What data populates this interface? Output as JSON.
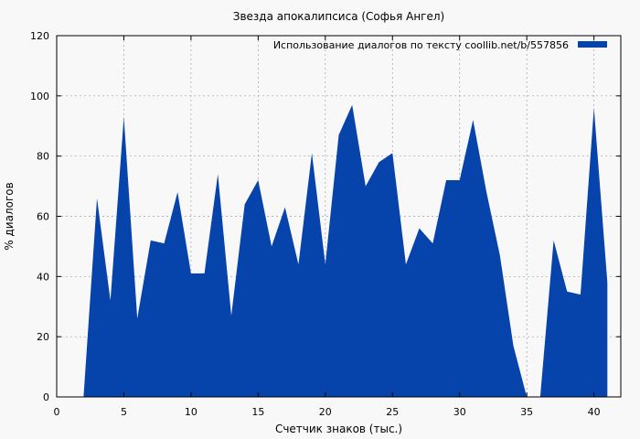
{
  "chart_data": {
    "type": "area",
    "title": "Звезда апокалипсиса (Софья Ангел)",
    "xlabel": "Счетчик знаков (тыс.)",
    "ylabel": "% диалогов",
    "xlim": [
      0,
      42
    ],
    "ylim": [
      0,
      120
    ],
    "x_ticks": [
      0,
      5,
      10,
      15,
      20,
      25,
      30,
      35,
      40
    ],
    "y_ticks": [
      0,
      20,
      40,
      60,
      80,
      100,
      120
    ],
    "grid": true,
    "legend_position": "top-right",
    "series": [
      {
        "name": "Использование диалогов по тексту  coollib.net/b/557856",
        "color": "#0643ab",
        "x": [
          0,
          1,
          2,
          3,
          4,
          5,
          6,
          7,
          8,
          9,
          10,
          11,
          12,
          13,
          14,
          15,
          16,
          17,
          18,
          19,
          20,
          21,
          22,
          23,
          24,
          25,
          26,
          27,
          28,
          29,
          30,
          31,
          32,
          33,
          34,
          35,
          36,
          37,
          38,
          39,
          40,
          41
        ],
        "values": [
          0,
          0,
          0,
          66,
          32,
          93,
          26,
          52,
          51,
          68,
          41,
          41,
          74,
          27,
          64,
          72,
          50,
          63,
          44,
          81,
          44,
          87,
          97,
          70,
          78,
          81,
          44,
          56,
          51,
          72,
          72,
          92,
          68,
          47,
          17,
          0,
          0,
          52,
          35,
          34,
          96,
          38
        ]
      }
    ]
  }
}
